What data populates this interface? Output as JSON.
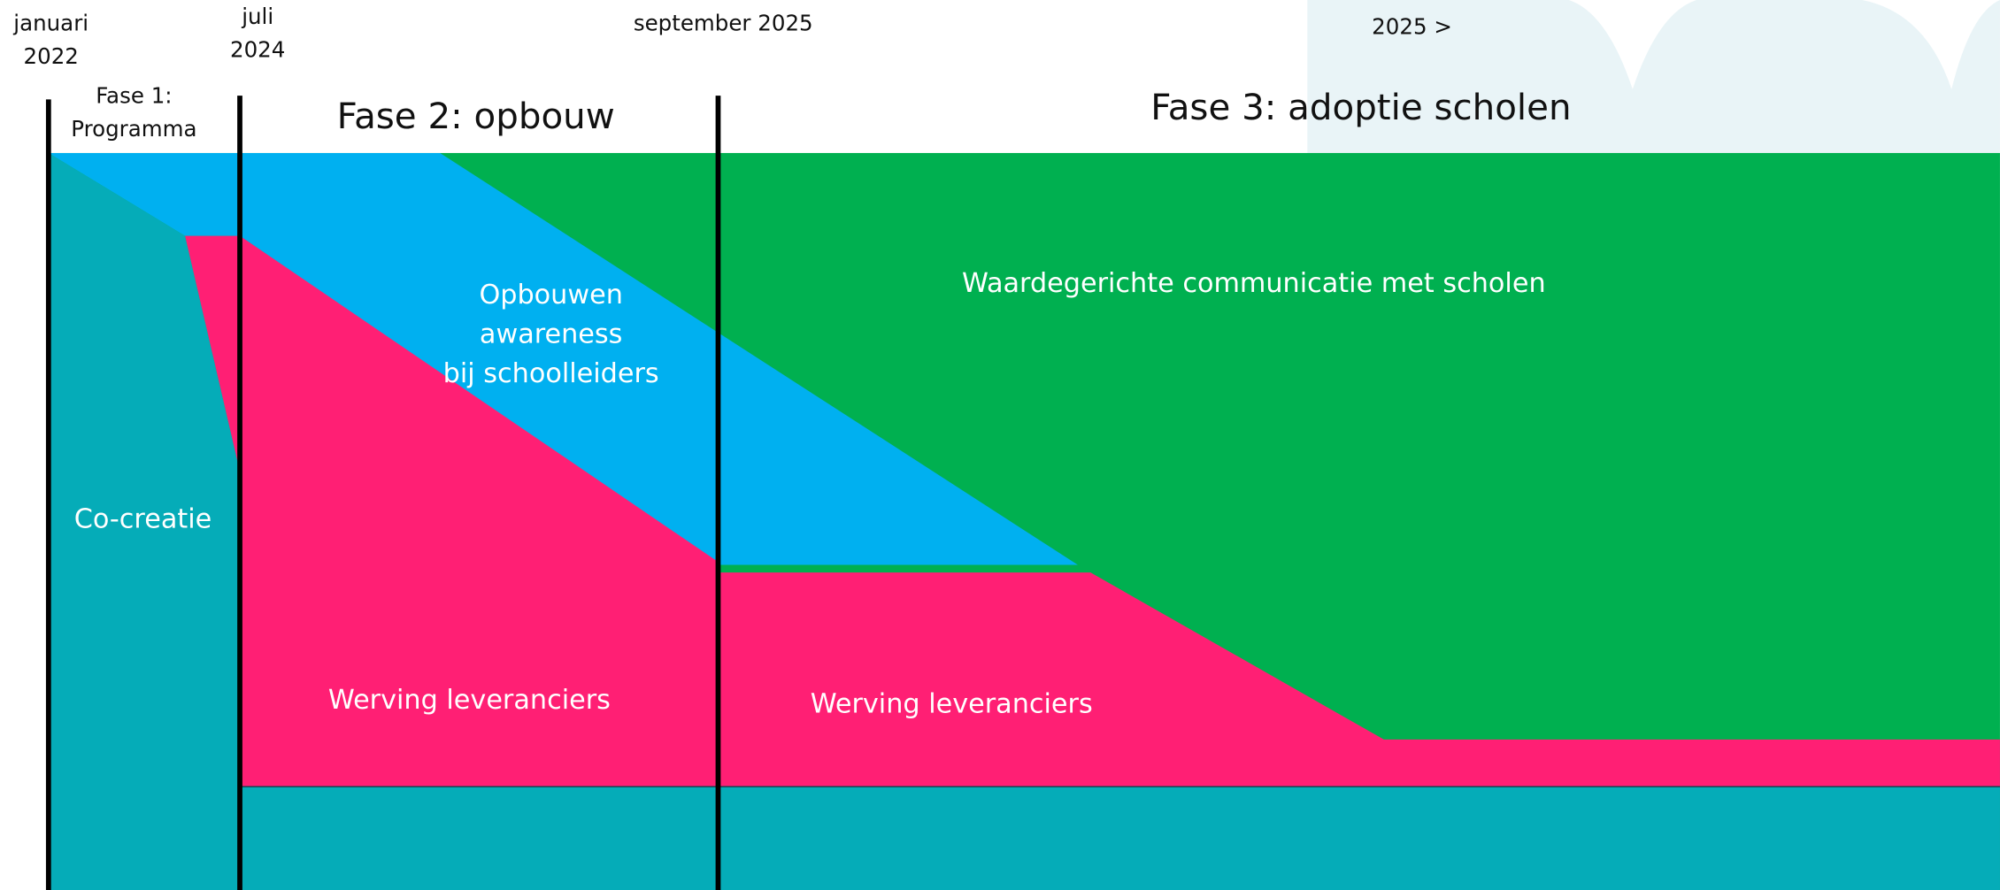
{
  "timeline": {
    "markers": [
      {
        "lines": [
          "januari",
          "2022"
        ]
      },
      {
        "lines": [
          "juli",
          "2024"
        ]
      },
      {
        "lines": [
          "september 2025"
        ]
      },
      {
        "lines": [
          "2025 >"
        ]
      }
    ],
    "phases": [
      {
        "lines": [
          "Fase 1:",
          "Programma"
        ]
      },
      {
        "lines": [
          "Fase 2: opbouw"
        ]
      },
      {
        "lines": [
          "Fase 3: adoptie scholen"
        ]
      }
    ],
    "areas": [
      {
        "lines": [
          "Waardegerichte communicatie met scholen"
        ]
      },
      {
        "lines": [
          "Opbouwen",
          "awareness",
          "bij schoolleiders"
        ]
      },
      {
        "lines": [
          "Co-creatie"
        ]
      },
      {
        "lines": [
          "Werving leveranciers"
        ]
      },
      {
        "lines": [
          "Werving leveranciers"
        ]
      }
    ]
  }
}
